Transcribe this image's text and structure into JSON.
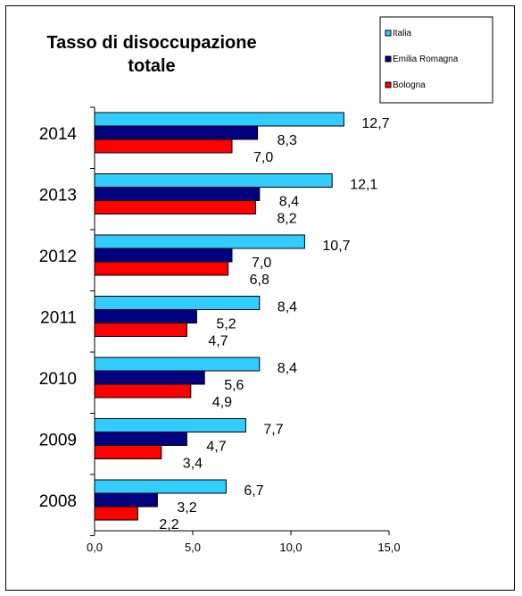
{
  "chart_data": {
    "type": "bar",
    "orientation": "horizontal",
    "title_lines": [
      "Tasso di disoccupazione",
      "totale"
    ],
    "categories": [
      "2014",
      "2013",
      "2012",
      "2011",
      "2010",
      "2009",
      "2008"
    ],
    "series": [
      {
        "name": "Italia",
        "color": "#33CCFF",
        "values": [
          12.7,
          12.1,
          10.7,
          8.4,
          8.4,
          7.7,
          6.7
        ],
        "labels": [
          "12,7",
          "12,1",
          "10,7",
          "8,4",
          "8,4",
          "7,7",
          "6,7"
        ]
      },
      {
        "name": "Emilia Romagna",
        "color": "#000080",
        "values": [
          8.3,
          8.4,
          7.0,
          5.2,
          5.6,
          4.7,
          3.2
        ],
        "labels": [
          "8,3",
          "8,4",
          "7,0",
          "5,2",
          "5,6",
          "4,7",
          "3,2"
        ]
      },
      {
        "name": "Bologna",
        "color": "#FF0000",
        "values": [
          7.0,
          8.2,
          6.8,
          4.7,
          4.9,
          3.4,
          2.2
        ],
        "labels": [
          "7,0",
          "8,2",
          "6,8",
          "4,7",
          "4,9",
          "3,4",
          "2,2"
        ]
      }
    ],
    "xlim": [
      0,
      15
    ],
    "x_ticks": [
      "0,0",
      "5,0",
      "10,0",
      "15,0"
    ],
    "legend_position": "top-right",
    "grid": false
  }
}
